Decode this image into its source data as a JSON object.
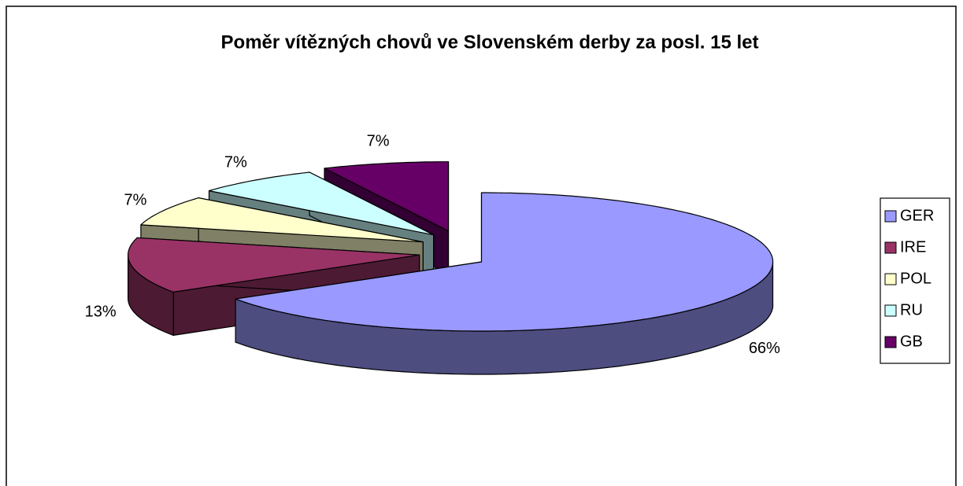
{
  "chart_data": {
    "type": "pie3d",
    "title": "Poměr vítězných chovů ve Slovenském derby za posl. 15 let",
    "categories": [
      "GER",
      "IRE",
      "POL",
      "RU",
      "GB"
    ],
    "values": [
      66,
      13,
      7,
      7,
      7
    ],
    "value_labels": [
      "66%",
      "13%",
      "7%",
      "7%",
      "7%"
    ],
    "colors": [
      "#9999ff",
      "#993366",
      "#ffffcc",
      "#ccffff",
      "#660066"
    ],
    "legend": "right"
  }
}
